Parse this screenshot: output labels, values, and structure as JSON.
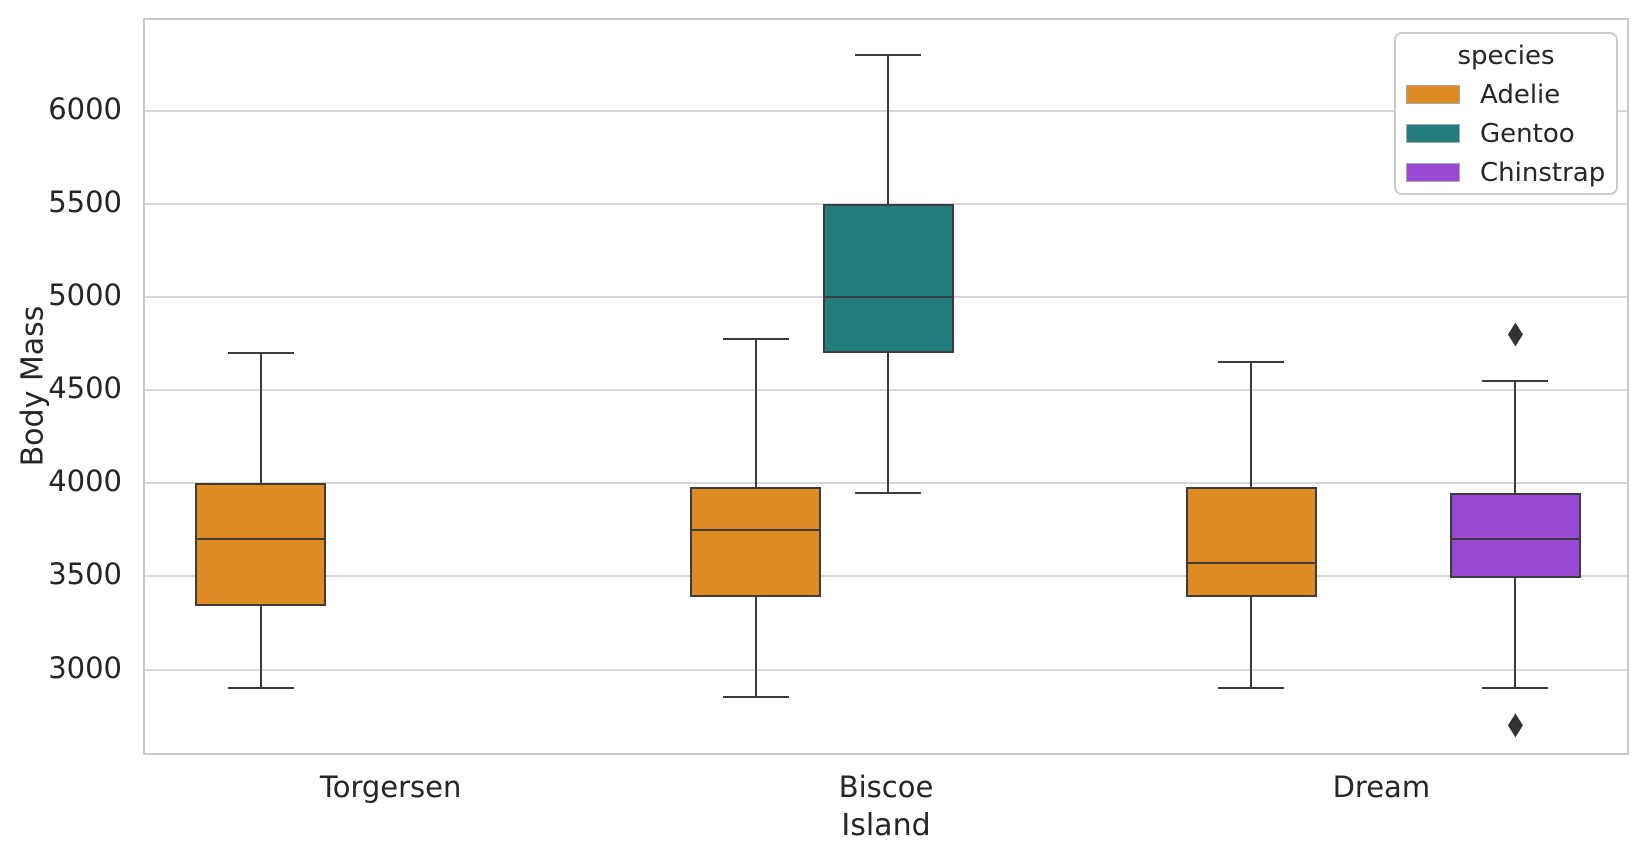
{
  "figure": {
    "background": "#ffffff"
  },
  "legend": {
    "title": "species",
    "items": [
      {
        "label": "Adelie",
        "color": "#df8b23"
      },
      {
        "label": "Gentoo",
        "color": "#227d7f"
      },
      {
        "label": "Chinstrap",
        "color": "#9a49d6"
      }
    ]
  },
  "chart_data": {
    "type": "boxplot",
    "title": "",
    "xlabel": "Island",
    "ylabel": "Body Mass",
    "categories": [
      "Torgersen",
      "Biscoe",
      "Dream"
    ],
    "hue_levels": [
      "Adelie",
      "Gentoo",
      "Chinstrap"
    ],
    "series_colors": {
      "Adelie": "#df8b23",
      "Gentoo": "#227d7f",
      "Chinstrap": "#9a49d6"
    },
    "y_ticks": [
      3000,
      3500,
      4000,
      4500,
      5000,
      5500,
      6000
    ],
    "ylim": [
      2530,
      6490
    ],
    "grid": "horizontal-only",
    "legend_position": "upper-right",
    "boxes": [
      {
        "island": "Torgersen",
        "species": "Adelie",
        "whisker_low": 2900,
        "q1": 3340,
        "median": 3700,
        "q3": 4000,
        "whisker_high": 4700,
        "outliers": []
      },
      {
        "island": "Biscoe",
        "species": "Adelie",
        "whisker_low": 2850,
        "q1": 3390,
        "median": 3750,
        "q3": 3980,
        "whisker_high": 4775,
        "outliers": []
      },
      {
        "island": "Biscoe",
        "species": "Gentoo",
        "whisker_low": 3950,
        "q1": 4700,
        "median": 5000,
        "q3": 5500,
        "whisker_high": 6300,
        "outliers": []
      },
      {
        "island": "Dream",
        "species": "Adelie",
        "whisker_low": 2900,
        "q1": 3390,
        "median": 3575,
        "q3": 3980,
        "whisker_high": 4650,
        "outliers": []
      },
      {
        "island": "Dream",
        "species": "Chinstrap",
        "whisker_low": 2900,
        "q1": 3490,
        "median": 3700,
        "q3": 3950,
        "whisker_high": 4550,
        "outliers": [
          2700,
          4800
        ]
      }
    ],
    "colors": {
      "line": "#3c3c3c",
      "grid": "#d8d8d8",
      "axes_border": "#c9c9c9",
      "text": "#262626",
      "outlier": "#333333"
    }
  }
}
